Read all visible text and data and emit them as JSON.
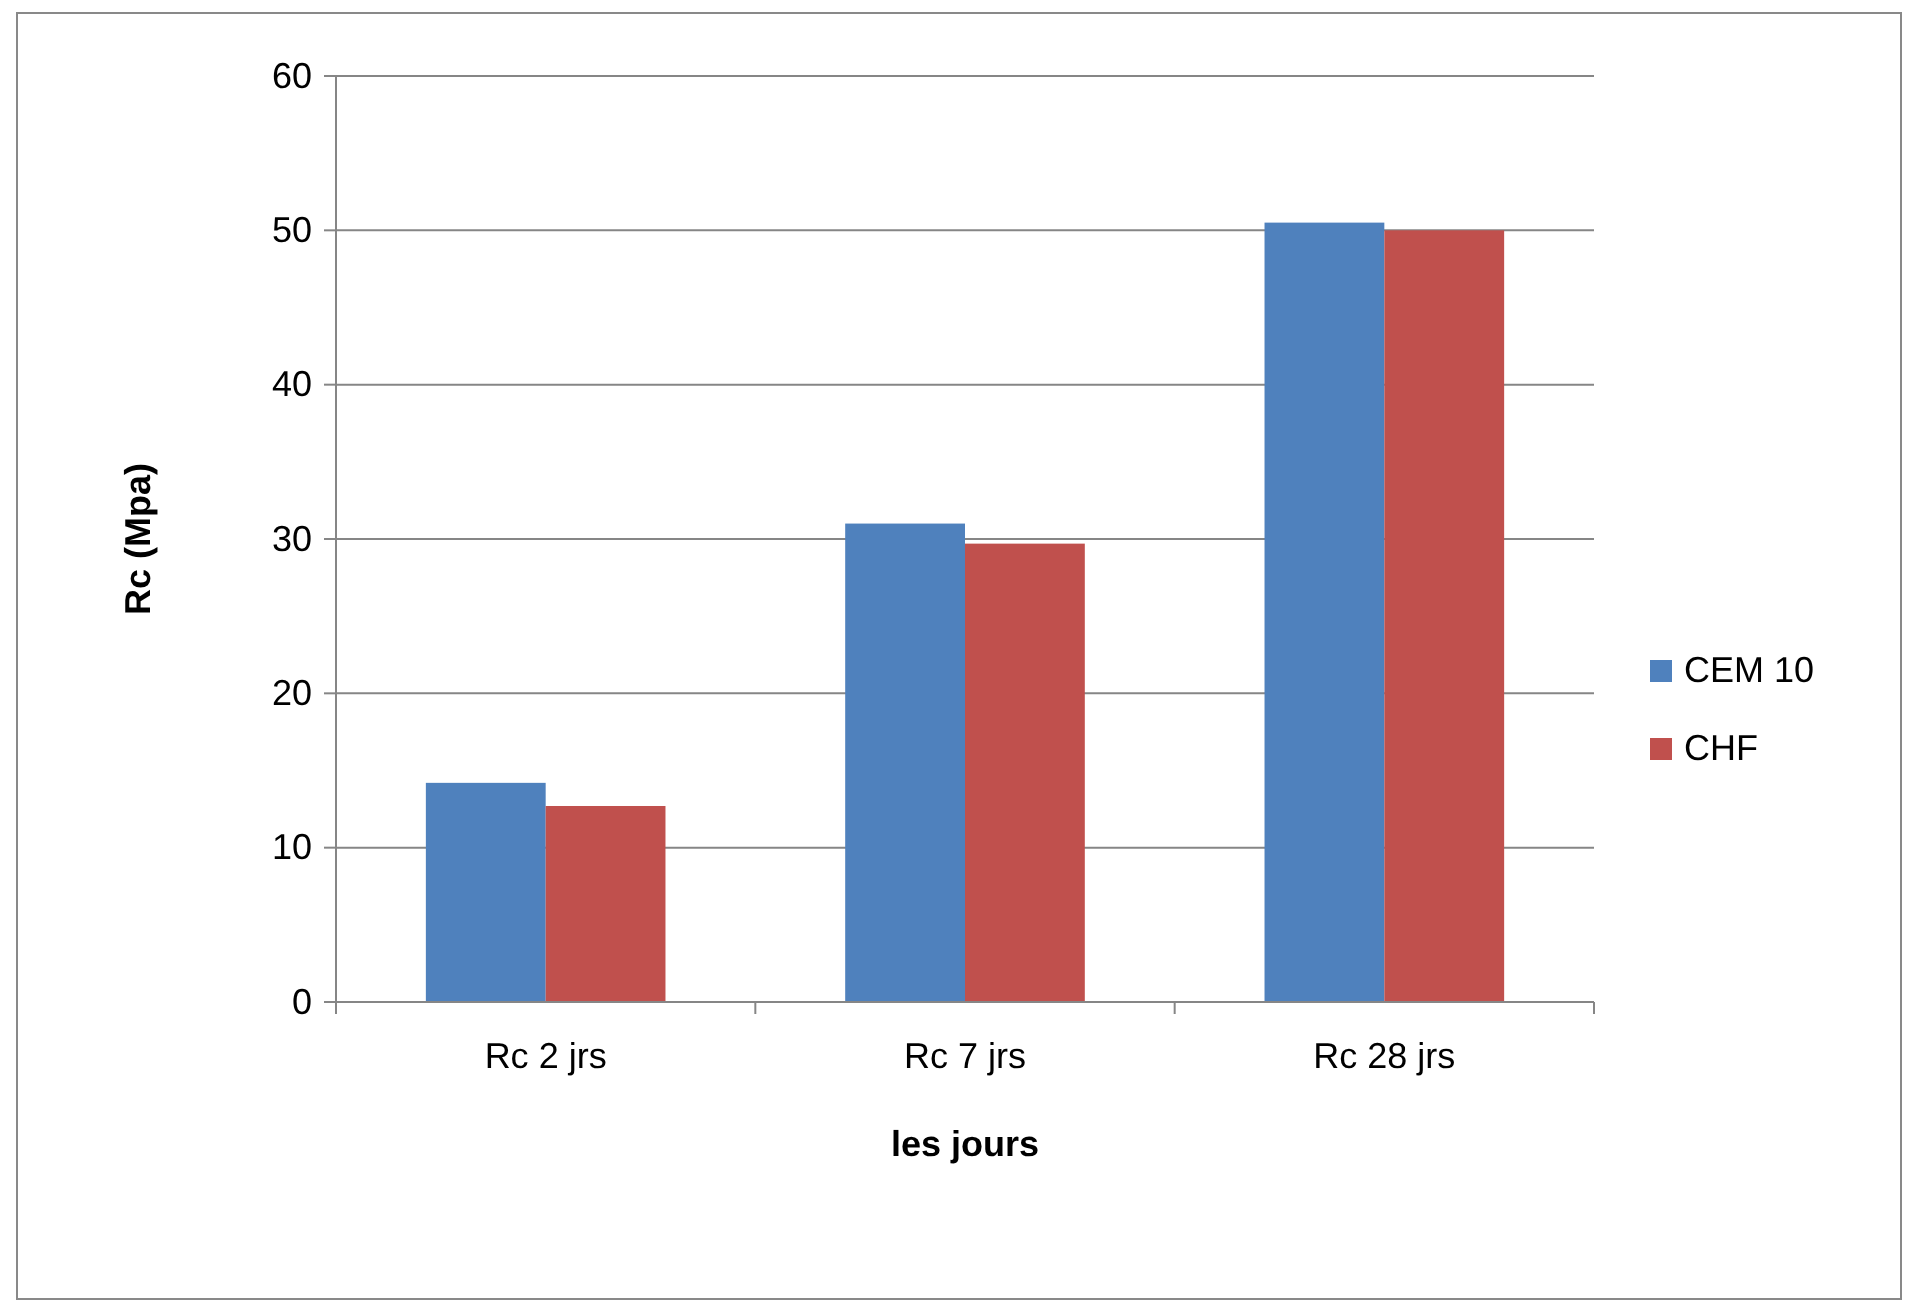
{
  "chart_data": {
    "type": "bar",
    "xlabel": "les jours",
    "ylabel": "Rc (Mpa)",
    "categories": [
      "Rc 2 jrs",
      "Rc 7 jrs",
      "Rc 28 jrs"
    ],
    "series": [
      {
        "name": "CEM 10",
        "color": "#4f81bd",
        "values": [
          14.2,
          31,
          50.5
        ]
      },
      {
        "name": "CHF",
        "color": "#c0504d",
        "values": [
          12.7,
          29.7,
          50
        ]
      }
    ],
    "ylim": [
      0,
      60
    ],
    "yticks": [
      0,
      10,
      20,
      30,
      40,
      50,
      60
    ],
    "grid": "y",
    "legend": "right"
  }
}
